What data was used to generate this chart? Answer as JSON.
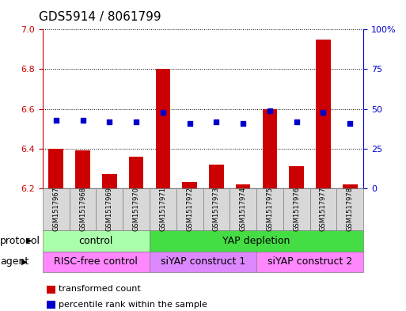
{
  "title": "GDS5914 / 8061799",
  "samples": [
    "GSM1517967",
    "GSM1517968",
    "GSM1517969",
    "GSM1517970",
    "GSM1517971",
    "GSM1517972",
    "GSM1517973",
    "GSM1517974",
    "GSM1517975",
    "GSM1517976",
    "GSM1517977",
    "GSM1517978"
  ],
  "transformed_counts": [
    6.4,
    6.39,
    6.27,
    6.36,
    6.8,
    6.23,
    6.32,
    6.22,
    6.6,
    6.31,
    6.95,
    6.22
  ],
  "percentile_ranks": [
    43,
    43,
    42,
    42,
    48,
    41,
    42,
    41,
    49,
    42,
    48,
    41
  ],
  "ylim_left": [
    6.2,
    7.0
  ],
  "ylim_right": [
    0,
    100
  ],
  "yticks_left": [
    6.2,
    6.4,
    6.6,
    6.8,
    7.0
  ],
  "yticks_right": [
    0,
    25,
    50,
    75,
    100
  ],
  "bar_color": "#cc0000",
  "dot_color": "#0000cc",
  "bar_bottom": 6.2,
  "protocol_groups": [
    {
      "label": "control",
      "start": 0,
      "end": 3,
      "color": "#aaffaa"
    },
    {
      "label": "YAP depletion",
      "start": 4,
      "end": 11,
      "color": "#44dd44"
    }
  ],
  "agent_groups": [
    {
      "label": "RISC-free control",
      "start": 0,
      "end": 3,
      "color": "#ff88ff"
    },
    {
      "label": "siYAP construct 1",
      "start": 4,
      "end": 7,
      "color": "#dd88ff"
    },
    {
      "label": "siYAP construct 2",
      "start": 8,
      "end": 11,
      "color": "#ff88ff"
    }
  ],
  "legend_items": [
    {
      "label": "transformed count",
      "color": "#cc0000"
    },
    {
      "label": "percentile rank within the sample",
      "color": "#0000cc"
    }
  ],
  "protocol_label": "protocol",
  "agent_label": "agent",
  "tick_color_left": "#cc0000",
  "tick_color_right": "#0000cc",
  "grid_color": "black",
  "xticklabel_bg": "#d8d8d8",
  "title_fontsize": 11,
  "axis_fontsize": 8,
  "row_label_fontsize": 9,
  "row_content_fontsize": 9,
  "legend_fontsize": 8
}
